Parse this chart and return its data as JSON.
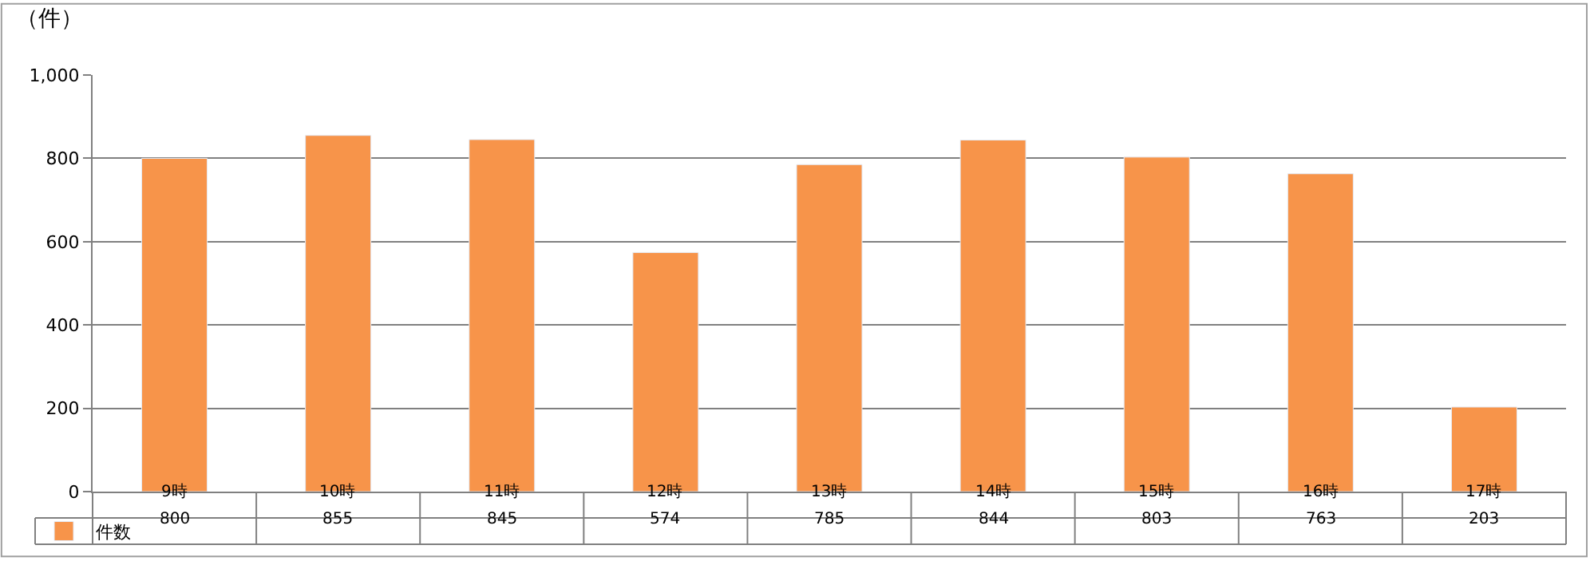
{
  "chart_data": {
    "type": "bar",
    "ylabel": "（件）",
    "categories": [
      "9時",
      "10時",
      "11時",
      "12時",
      "13時",
      "14時",
      "15時",
      "16時",
      "17時"
    ],
    "series": [
      {
        "name": "件数",
        "color": "#f7944a",
        "values": [
          800,
          855,
          845,
          574,
          785,
          844,
          803,
          763,
          203
        ]
      }
    ],
    "ylim": [
      0,
      1000
    ],
    "yticks": [
      0,
      200,
      400,
      600,
      800,
      {
        "value": 1000,
        "label": "1,000"
      }
    ],
    "grid": "y",
    "legend": "bottom left",
    "data_labels": true
  }
}
